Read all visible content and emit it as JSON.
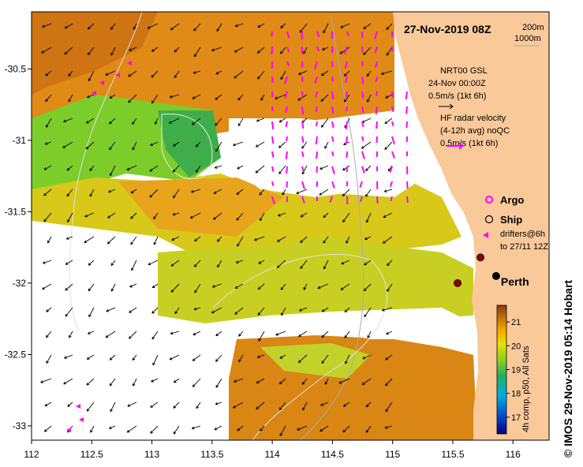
{
  "title": "27-Nov-2019 08Z",
  "depth_legend": {
    "line1": "200m",
    "line2": "1000m"
  },
  "axes": {
    "x_ticks": [
      "112",
      "112.5",
      "113",
      "113.5",
      "114",
      "114.5",
      "115",
      "115.5",
      "116"
    ],
    "y_ticks": [
      "-30.5",
      "-31",
      "-31.5",
      "-32",
      "-32.5",
      "-33"
    ],
    "x_range": [
      112,
      116.3
    ],
    "y_range": [
      -33.1,
      -30.1
    ]
  },
  "model_legend": {
    "name": "NRT00 GSL",
    "time": "24-Nov 00:00Z",
    "speed": "0.5m/s (1kt 6h)"
  },
  "radar_legend": {
    "line1": "HF radar velocity",
    "line2": "(4-12h avg) noQC",
    "speed": "0.5m/s (1kt 6h)"
  },
  "markers": {
    "argo": "Argo",
    "ship": "Ship",
    "drifters_line1": "drifters@6h",
    "drifters_line2": "to 27/11 12Z"
  },
  "city": {
    "name": "Perth",
    "lon": 115.86,
    "lat": -31.95
  },
  "ship_positions": [
    {
      "lon": 115.73,
      "lat": -31.82
    },
    {
      "lon": 115.54,
      "lat": -32.0
    }
  ],
  "colorbar": {
    "ticks": [
      "21",
      "20",
      "19",
      "18",
      "17"
    ],
    "caption": "4h comp, p50, All Sats"
  },
  "credit": "© IMOS 29-Nov-2019 05:14 Hobart",
  "colors": {
    "land": "#f9c99a",
    "arrow_model": "#000000",
    "arrow_radar": "#ff00ff",
    "ship_marker": "#8b0000"
  }
}
